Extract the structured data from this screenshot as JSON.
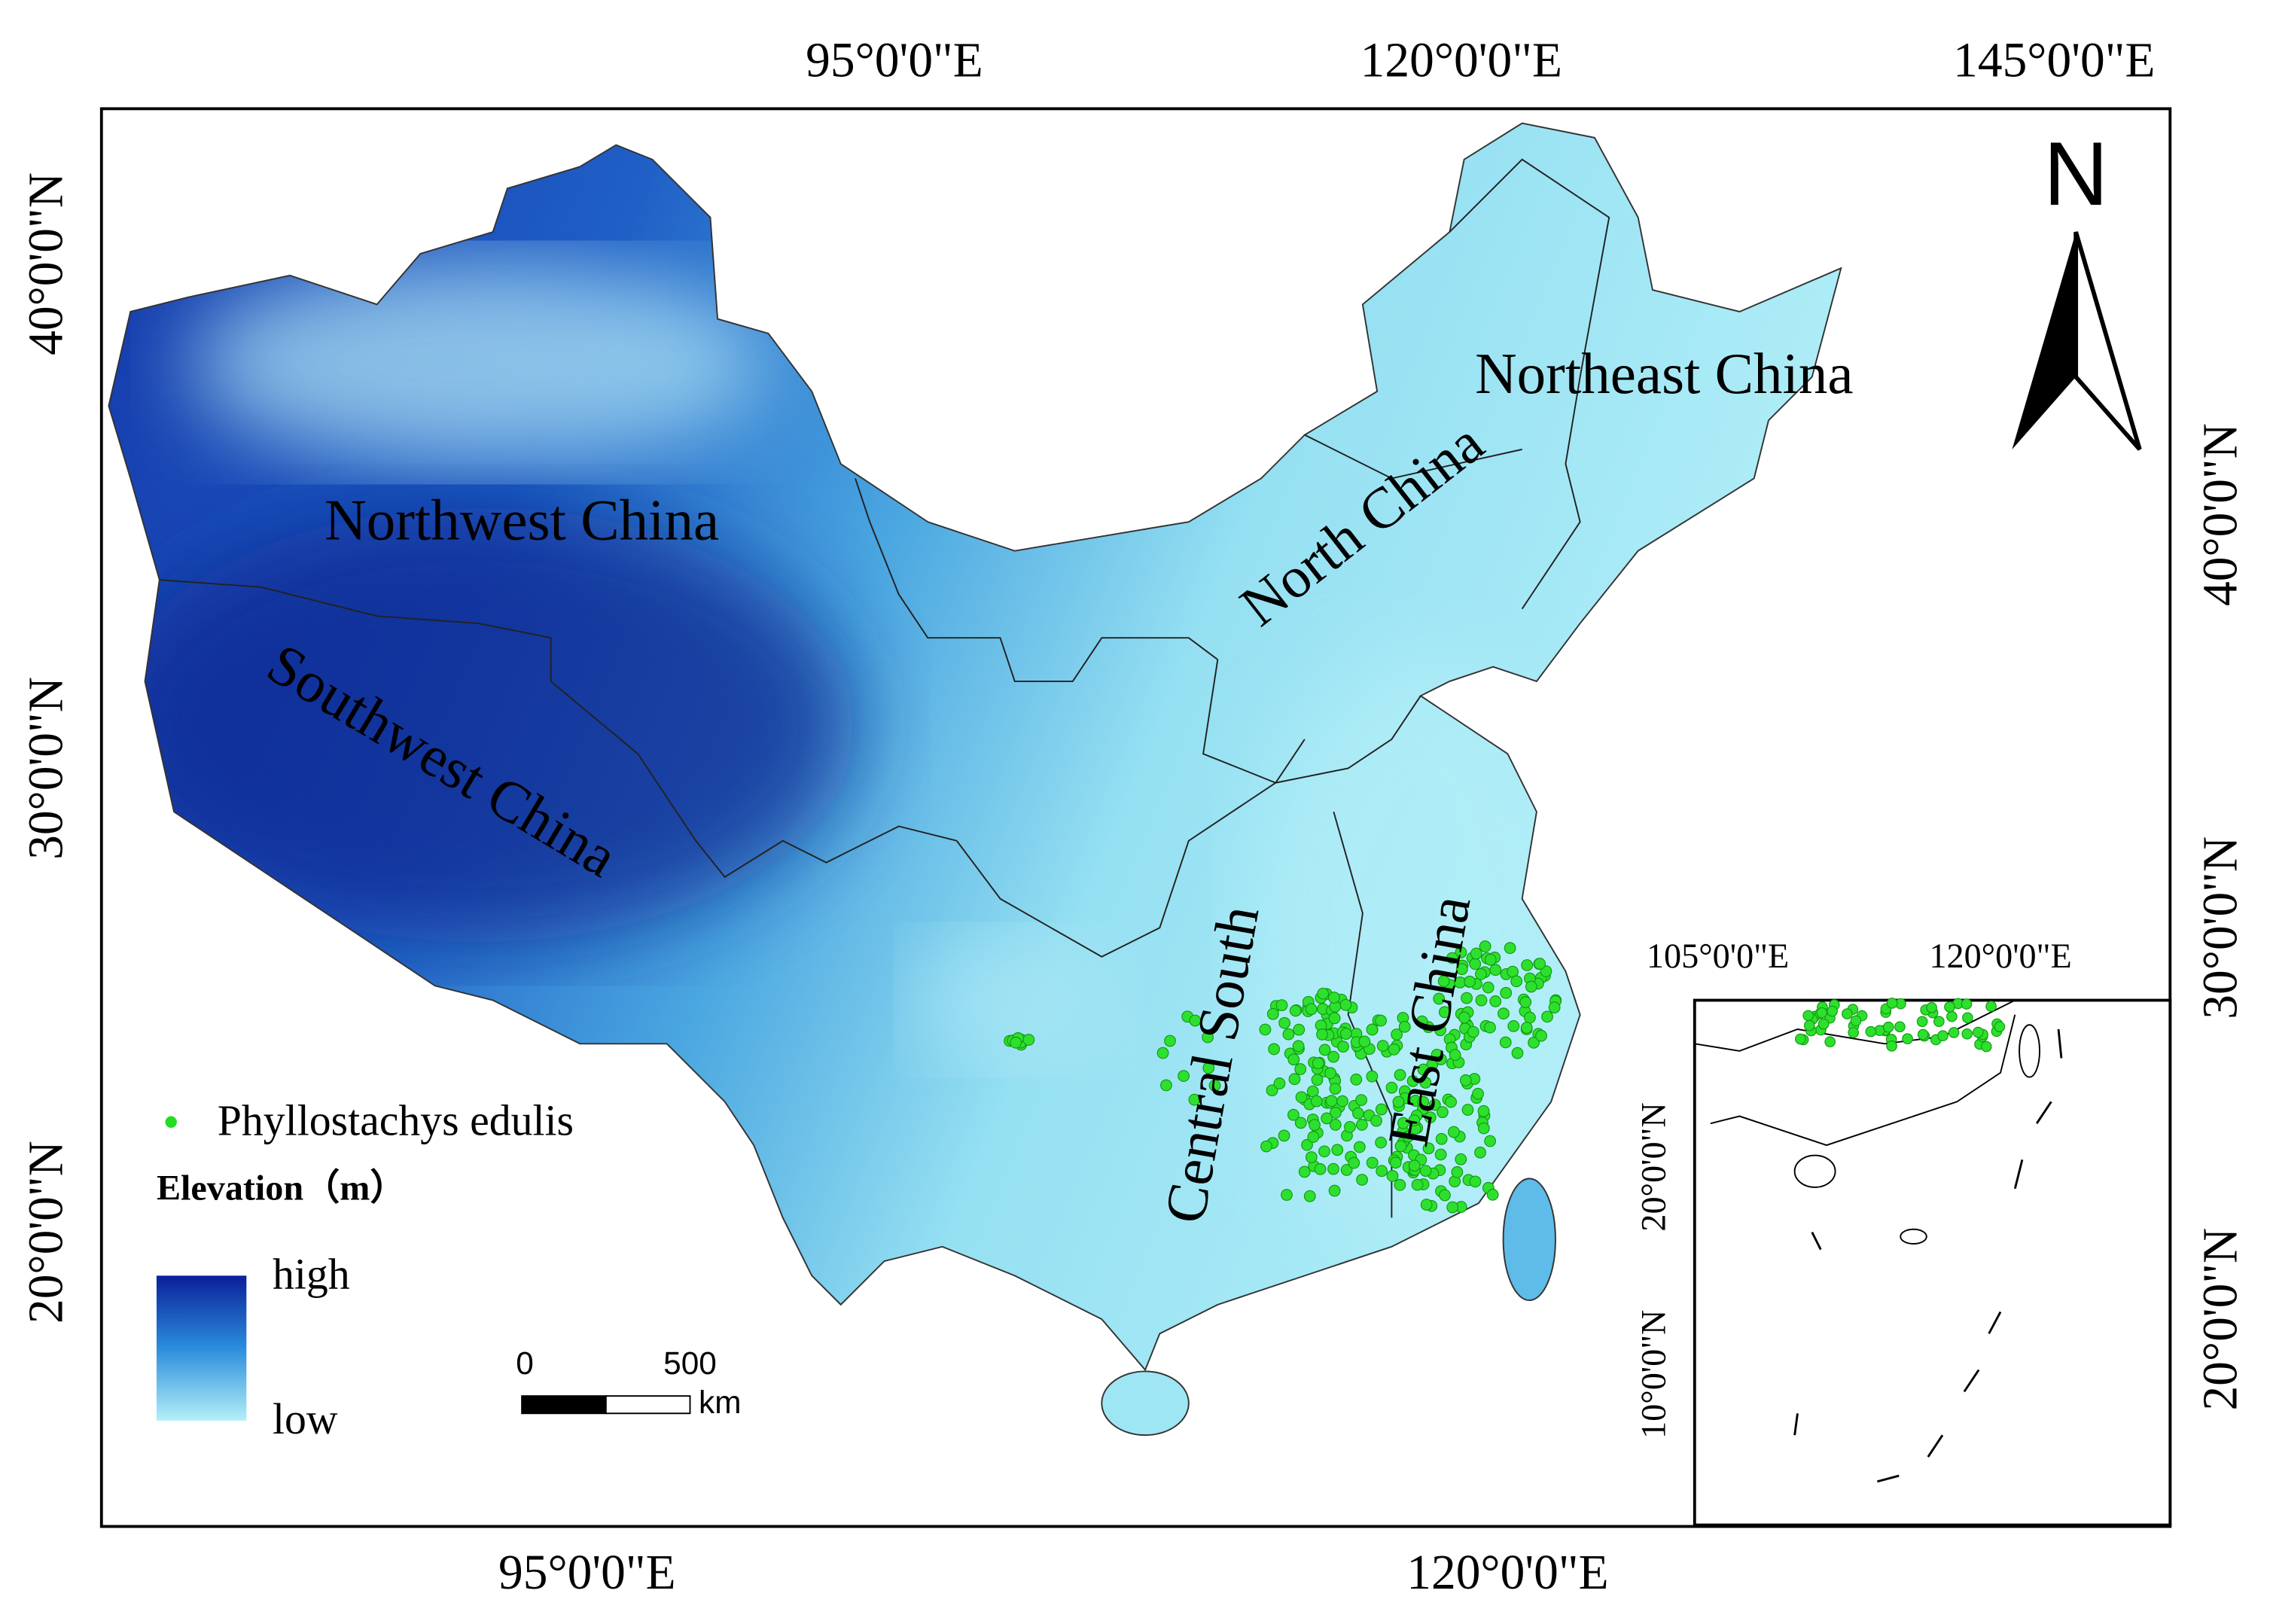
{
  "map": {
    "top_axis_labels": [
      "95°0'0\"E",
      "120°0'0\"E",
      "145°0'0\"E"
    ],
    "bottom_axis_labels": [
      "95°0'0\"E",
      "120°0'0\"E"
    ],
    "left_axis_labels": [
      "40°0'0\"N",
      "30°0'0\"N",
      "20°0'0\"N"
    ],
    "right_axis_labels": [
      "40°0'0\"N",
      "30°0'0\"N",
      "20°0'0\"N"
    ],
    "regions": [
      "Northwest China",
      "Southwest China",
      "North China",
      "Northeast China",
      "Central South",
      "East China"
    ],
    "north_arrow": "N",
    "legend": {
      "points": "Phyllostachys edulis",
      "elevation_title": "Elevation（m）",
      "high": "high",
      "low": "low"
    },
    "scale_bar": {
      "start": 0,
      "end": 500,
      "unit": "km"
    },
    "inset": {
      "top_axis_labels": [
        "105°0'0\"E",
        "120°0'0\"E"
      ],
      "left_axis_labels": [
        "20°0'0\"N",
        "10°0'0\"N"
      ]
    }
  }
}
